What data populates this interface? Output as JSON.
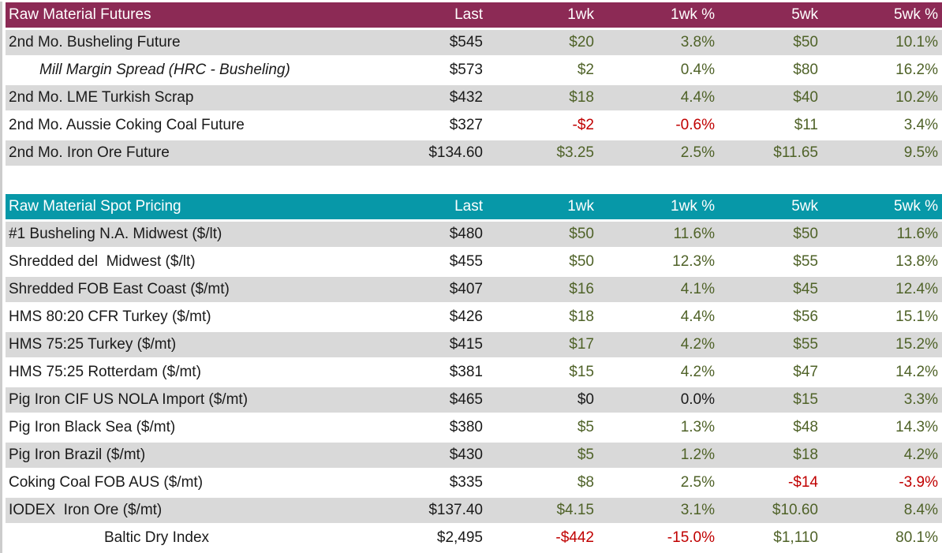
{
  "colors": {
    "futures_header_bg": "#8C2A55",
    "spot_header_bg": "#0798A8",
    "stripe_gray": "#D9D9D9",
    "row_white": "#FFFFFF",
    "positive_text": "#4F6228",
    "negative_text": "#C00000",
    "neutral_text": "#1A1A1A",
    "header_text": "#FFFFFF",
    "left_sliver_gray": "#CCCCCC"
  },
  "tables": [
    {
      "title": "Raw Material Futures",
      "columns": [
        "Last",
        "1wk",
        "1wk %",
        "5wk",
        "5wk %"
      ],
      "rows": [
        {
          "name": "2nd Mo. Busheling Future",
          "name_style": "",
          "values": [
            "$545",
            "$20",
            "3.8%",
            "$50",
            "10.1%"
          ]
        },
        {
          "name": "Mill Margin Spread (HRC - Busheling)",
          "name_style": "italic",
          "values": [
            "$573",
            "$2",
            "0.4%",
            "$80",
            "16.2%"
          ]
        },
        {
          "name": "2nd Mo. LME Turkish Scrap",
          "name_style": "",
          "values": [
            "$432",
            "$18",
            "4.4%",
            "$40",
            "10.2%"
          ]
        },
        {
          "name": "2nd Mo. Aussie Coking Coal Future",
          "name_style": "",
          "values": [
            "$327",
            "-$2",
            "-0.6%",
            "$11",
            "3.4%"
          ]
        },
        {
          "name": "2nd Mo. Iron Ore Future",
          "name_style": "",
          "values": [
            "$134.60",
            "$3.25",
            "2.5%",
            "$11.65",
            "9.5%"
          ]
        }
      ]
    },
    {
      "title": "Raw Material Spot Pricing",
      "columns": [
        "Last",
        "1wk",
        "1wk %",
        "5wk",
        "5wk %"
      ],
      "rows": [
        {
          "name": "#1 Busheling N.A. Midwest ($/lt)",
          "name_style": "",
          "values": [
            "$480",
            "$50",
            "11.6%",
            "$50",
            "11.6%"
          ]
        },
        {
          "name": "Shredded del  Midwest ($/lt)",
          "name_style": "",
          "values": [
            "$455",
            "$50",
            "12.3%",
            "$55",
            "13.8%"
          ]
        },
        {
          "name": "Shredded FOB East Coast ($/mt)",
          "name_style": "",
          "values": [
            "$407",
            "$16",
            "4.1%",
            "$45",
            "12.4%"
          ]
        },
        {
          "name": "HMS 80:20 CFR Turkey ($/mt)",
          "name_style": "",
          "values": [
            "$426",
            "$18",
            "4.4%",
            "$56",
            "15.1%"
          ]
        },
        {
          "name": "HMS 75:25 Turkey ($/mt)",
          "name_style": "",
          "values": [
            "$415",
            "$17",
            "4.2%",
            "$55",
            "15.2%"
          ]
        },
        {
          "name": "HMS 75:25 Rotterdam ($/mt)",
          "name_style": "",
          "values": [
            "$381",
            "$15",
            "4.2%",
            "$47",
            "14.2%"
          ]
        },
        {
          "name": "Pig Iron CIF US NOLA Import ($/mt)",
          "name_style": "",
          "values": [
            "$465",
            "$0",
            "0.0%",
            "$15",
            "3.3%"
          ]
        },
        {
          "name": "Pig Iron Black Sea ($/mt)",
          "name_style": "",
          "values": [
            "$380",
            "$5",
            "1.3%",
            "$48",
            "14.3%"
          ]
        },
        {
          "name": "Pig Iron Brazil ($/mt)",
          "name_style": "",
          "values": [
            "$430",
            "$5",
            "1.2%",
            "$18",
            "4.2%"
          ]
        },
        {
          "name": "Coking Coal FOB AUS ($/mt)",
          "name_style": "",
          "values": [
            "$335",
            "$8",
            "2.5%",
            "-$14",
            "-3.9%"
          ]
        },
        {
          "name": "IODEX  Iron Ore ($/mt)",
          "name_style": "",
          "values": [
            "$137.40",
            "$4.15",
            "3.1%",
            "$10.60",
            "8.4%"
          ]
        },
        {
          "name": "Baltic Dry Index",
          "name_style": "center",
          "values": [
            "$2,495",
            "-$442",
            "-15.0%",
            "$1,110",
            "80.1%"
          ]
        }
      ]
    }
  ]
}
